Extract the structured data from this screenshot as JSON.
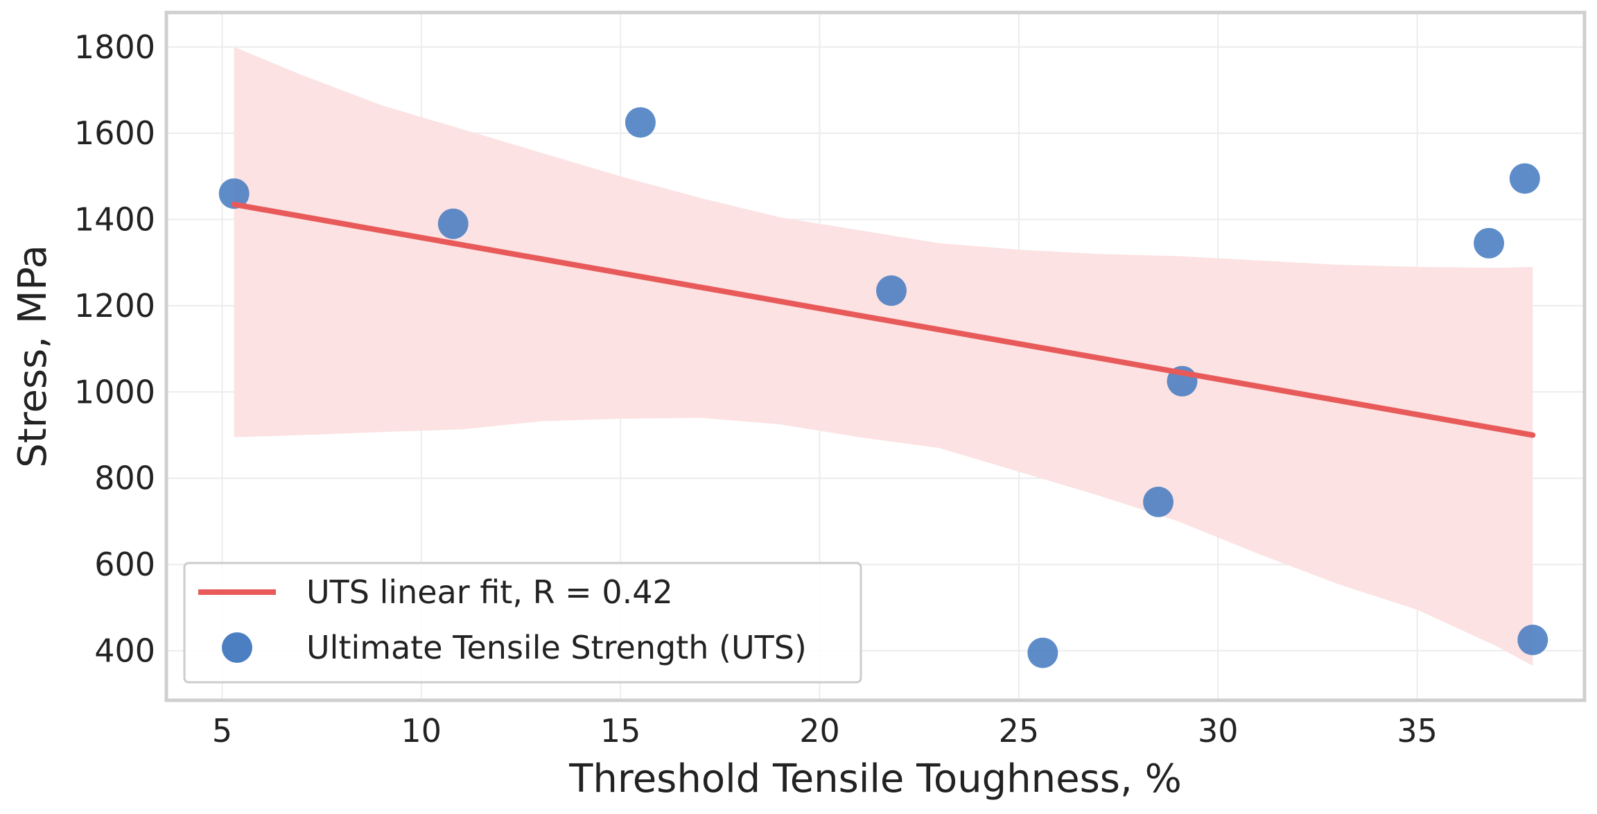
{
  "chart_data": {
    "type": "scatter",
    "title": "",
    "xlabel": "Threshold Tensile Toughness, %",
    "ylabel": "Stress, MPa",
    "xlim": [
      3.6,
      39.2
    ],
    "ylim": [
      285,
      1880
    ],
    "xticks": [
      5,
      10,
      15,
      20,
      25,
      30,
      35
    ],
    "yticks": [
      400,
      600,
      800,
      1000,
      1200,
      1400,
      1600,
      1800
    ],
    "xtick_labels": [
      "5",
      "10",
      "15",
      "20",
      "25",
      "30",
      "35"
    ],
    "ytick_labels": [
      "400",
      "600",
      "800",
      "1000",
      "1200",
      "1400",
      "1600",
      "1800"
    ],
    "grid": true,
    "legend_position": "bottom-left",
    "series": [
      {
        "name": "Ultimate Tensile Strength (UTS)",
        "kind": "scatter",
        "color": "#4c7fc2",
        "x": [
          5.3,
          10.8,
          15.5,
          21.8,
          25.6,
          28.5,
          29.1,
          36.8,
          37.7,
          37.9
        ],
        "y": [
          1460,
          1390,
          1625,
          1235,
          395,
          745,
          1025,
          1345,
          1495,
          425
        ]
      },
      {
        "name": "UTS linear fit, R = 0.42",
        "kind": "line",
        "color": "#e85a5a",
        "x": [
          5.3,
          37.9
        ],
        "y": [
          1435,
          900
        ]
      }
    ],
    "confidence_band": {
      "color": "#fce2e2",
      "x": [
        5.3,
        7,
        9,
        11,
        13,
        15,
        17,
        19,
        21,
        23,
        25,
        27,
        29,
        31,
        33,
        35,
        37,
        37.9
      ],
      "upper": [
        1800,
        1735,
        1665,
        1610,
        1555,
        1500,
        1450,
        1405,
        1375,
        1345,
        1330,
        1320,
        1315,
        1305,
        1295,
        1290,
        1288,
        1290
      ],
      "lower": [
        895,
        900,
        907,
        913,
        932,
        938,
        940,
        925,
        895,
        870,
        815,
        760,
        700,
        625,
        555,
        495,
        410,
        365
      ]
    }
  }
}
